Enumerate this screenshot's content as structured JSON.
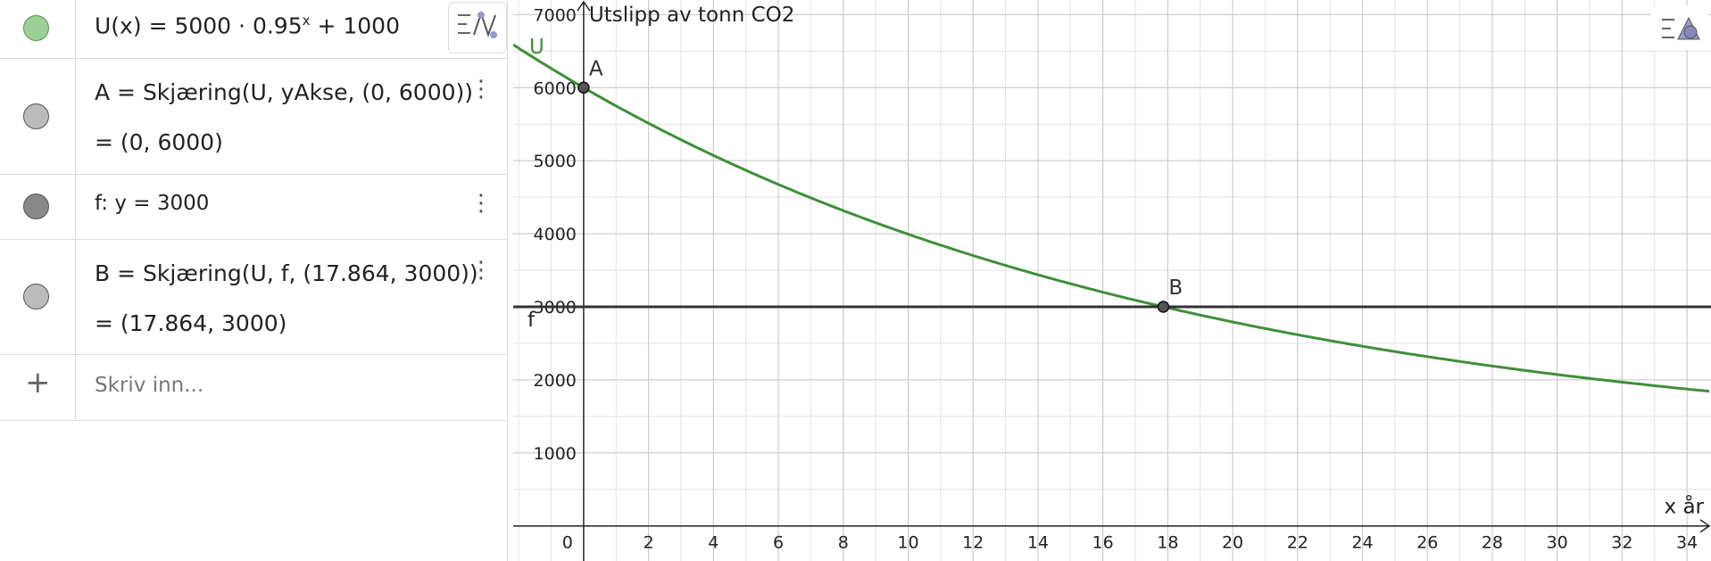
{
  "algebra": {
    "rows": [
      {
        "name": "U(x)",
        "eq": "=",
        "a": "5000",
        "dot": "·",
        "b": "0.95",
        "exp": "x",
        "plus": "+",
        "c": "1000"
      },
      {
        "line1": "A = Skjæring(U, yAkse, (0, 6000))",
        "line2": "= (0, 6000)"
      },
      {
        "line1": "f: y = 3000"
      },
      {
        "line1": "B = Skjæring(U, f, (17.864, 3000))",
        "line2": "= (17.864, 3000)"
      }
    ],
    "input_placeholder": "Skriv inn..."
  },
  "chart_data": {
    "type": "function",
    "ylabel": "Utslipp av tonn CO2",
    "xlabel": "x år",
    "origin_label": "0",
    "xlim": [
      -2.17,
      34.74
    ],
    "ylim": [
      -480,
      7200
    ],
    "xticks": [
      2,
      4,
      6,
      8,
      10,
      12,
      14,
      16,
      18,
      20,
      22,
      24,
      26,
      28,
      30,
      32,
      34
    ],
    "yticks": [
      1000,
      2000,
      3000,
      4000,
      5000,
      6000,
      7000
    ],
    "grid": true,
    "curve": {
      "name": "U",
      "color": "#3f8f3a"
    },
    "hline": {
      "name": "f",
      "value": 3000,
      "color": "#333333"
    },
    "points": [
      {
        "name": "A",
        "x": 0,
        "y": 6000
      },
      {
        "name": "B",
        "x": 17.864,
        "y": 3000
      }
    ]
  }
}
